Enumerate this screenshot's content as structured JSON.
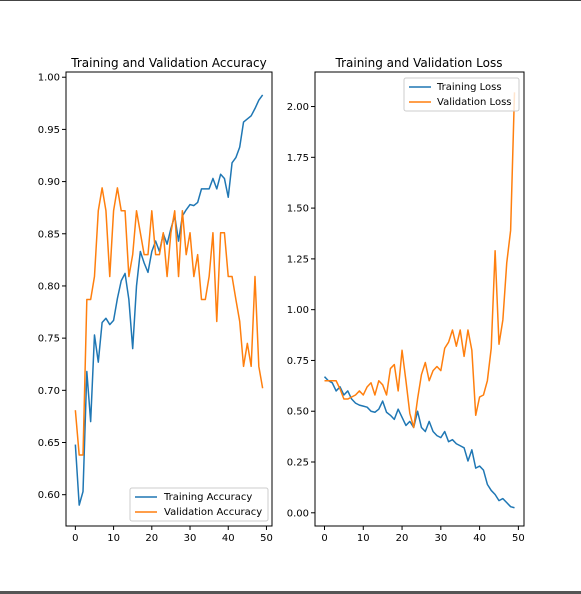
{
  "colors": {
    "series1": "#1f77b4",
    "series2": "#ff7f0e",
    "axis": "#000000",
    "legend_border": "#cccccc"
  },
  "chart_data": [
    {
      "type": "line",
      "title": "Training and Validation Accuracy",
      "xlabel": "",
      "ylabel": "",
      "xlim": [
        -2.45,
        51.45
      ],
      "ylim": [
        0.57,
        1.005
      ],
      "xticks": [
        0,
        10,
        20,
        30,
        40,
        50
      ],
      "yticks": [
        0.6,
        0.65,
        0.7,
        0.75,
        0.8,
        0.85,
        0.9,
        0.95,
        1.0
      ],
      "ytick_labels": [
        "0.60",
        "0.65",
        "0.70",
        "0.75",
        "0.80",
        "0.85",
        "0.90",
        "0.95",
        "1.00"
      ],
      "xtick_labels": [
        "0",
        "10",
        "20",
        "30",
        "40",
        "50"
      ],
      "legend_position": "lower-right",
      "grid": false,
      "series": [
        {
          "name": "Training Accuracy",
          "x": [
            0,
            1,
            2,
            3,
            4,
            5,
            6,
            7,
            8,
            9,
            10,
            11,
            12,
            13,
            14,
            15,
            16,
            17,
            18,
            19,
            20,
            21,
            22,
            23,
            24,
            25,
            26,
            27,
            28,
            29,
            30,
            31,
            32,
            33,
            34,
            35,
            36,
            37,
            38,
            39,
            40,
            41,
            42,
            43,
            44,
            45,
            46,
            47,
            48,
            49
          ],
          "values": [
            0.648,
            0.59,
            0.603,
            0.718,
            0.67,
            0.753,
            0.727,
            0.765,
            0.769,
            0.763,
            0.767,
            0.788,
            0.805,
            0.812,
            0.787,
            0.74,
            0.8,
            0.833,
            0.822,
            0.813,
            0.833,
            0.843,
            0.833,
            0.85,
            0.84,
            0.855,
            0.867,
            0.843,
            0.867,
            0.873,
            0.878,
            0.877,
            0.88,
            0.893,
            0.893,
            0.893,
            0.903,
            0.893,
            0.907,
            0.903,
            0.885,
            0.918,
            0.923,
            0.933,
            0.957,
            0.96,
            0.963,
            0.97,
            0.978,
            0.983
          ]
        },
        {
          "name": "Validation Accuracy",
          "x": [
            0,
            1,
            2,
            3,
            4,
            5,
            6,
            7,
            8,
            9,
            10,
            11,
            12,
            13,
            14,
            15,
            16,
            17,
            18,
            19,
            20,
            21,
            22,
            23,
            24,
            25,
            26,
            27,
            28,
            29,
            30,
            31,
            32,
            33,
            34,
            35,
            36,
            37,
            38,
            39,
            40,
            41,
            42,
            43,
            44,
            45,
            46,
            47,
            48,
            49
          ],
          "values": [
            0.681,
            0.638,
            0.638,
            0.787,
            0.787,
            0.809,
            0.872,
            0.894,
            0.872,
            0.809,
            0.872,
            0.894,
            0.872,
            0.872,
            0.809,
            0.83,
            0.872,
            0.851,
            0.83,
            0.83,
            0.872,
            0.83,
            0.83,
            0.851,
            0.809,
            0.851,
            0.872,
            0.809,
            0.872,
            0.83,
            0.851,
            0.809,
            0.83,
            0.787,
            0.787,
            0.809,
            0.851,
            0.766,
            0.851,
            0.851,
            0.809,
            0.809,
            0.787,
            0.766,
            0.723,
            0.745,
            0.723,
            0.809,
            0.723,
            0.702
          ]
        }
      ]
    },
    {
      "type": "line",
      "title": "Training and Validation Loss",
      "xlabel": "",
      "ylabel": "",
      "xlim": [
        -2.45,
        51.45
      ],
      "ylim": [
        -0.065,
        2.17
      ],
      "xticks": [
        0,
        10,
        20,
        30,
        40,
        50
      ],
      "yticks": [
        0.0,
        0.25,
        0.5,
        0.75,
        1.0,
        1.25,
        1.5,
        1.75,
        2.0
      ],
      "ytick_labels": [
        "0.00",
        "0.25",
        "0.50",
        "0.75",
        "1.00",
        "1.25",
        "1.50",
        "1.75",
        "2.00"
      ],
      "xtick_labels": [
        "0",
        "10",
        "20",
        "30",
        "40",
        "50"
      ],
      "legend_position": "upper-right",
      "grid": false,
      "series": [
        {
          "name": "Training Loss",
          "x": [
            0,
            1,
            2,
            3,
            4,
            5,
            6,
            7,
            8,
            9,
            10,
            11,
            12,
            13,
            14,
            15,
            16,
            17,
            18,
            19,
            20,
            21,
            22,
            23,
            24,
            25,
            26,
            27,
            28,
            29,
            30,
            31,
            32,
            33,
            34,
            35,
            36,
            37,
            38,
            39,
            40,
            41,
            42,
            43,
            44,
            45,
            46,
            47,
            48,
            49
          ],
          "values": [
            0.67,
            0.65,
            0.64,
            0.6,
            0.62,
            0.58,
            0.6,
            0.56,
            0.54,
            0.53,
            0.525,
            0.52,
            0.5,
            0.495,
            0.51,
            0.55,
            0.495,
            0.48,
            0.46,
            0.51,
            0.47,
            0.43,
            0.45,
            0.42,
            0.5,
            0.42,
            0.4,
            0.45,
            0.4,
            0.38,
            0.37,
            0.4,
            0.35,
            0.36,
            0.34,
            0.33,
            0.32,
            0.255,
            0.31,
            0.22,
            0.23,
            0.21,
            0.14,
            0.11,
            0.09,
            0.06,
            0.07,
            0.05,
            0.03,
            0.025
          ]
        },
        {
          "name": "Validation Loss",
          "x": [
            0,
            1,
            2,
            3,
            4,
            5,
            6,
            7,
            8,
            9,
            10,
            11,
            12,
            13,
            14,
            15,
            16,
            17,
            18,
            19,
            20,
            21,
            22,
            23,
            24,
            25,
            26,
            27,
            28,
            29,
            30,
            31,
            32,
            33,
            34,
            35,
            36,
            37,
            38,
            39,
            40,
            41,
            42,
            43,
            44,
            45,
            46,
            47,
            48,
            49
          ],
          "values": [
            0.65,
            0.65,
            0.65,
            0.65,
            0.61,
            0.56,
            0.56,
            0.57,
            0.58,
            0.6,
            0.58,
            0.62,
            0.64,
            0.58,
            0.65,
            0.63,
            0.58,
            0.71,
            0.73,
            0.6,
            0.8,
            0.65,
            0.49,
            0.42,
            0.56,
            0.68,
            0.74,
            0.65,
            0.7,
            0.72,
            0.7,
            0.81,
            0.84,
            0.9,
            0.82,
            0.9,
            0.77,
            0.9,
            0.8,
            0.48,
            0.57,
            0.58,
            0.65,
            0.81,
            1.29,
            0.83,
            0.95,
            1.23,
            1.39,
            2.07
          ]
        }
      ]
    }
  ]
}
